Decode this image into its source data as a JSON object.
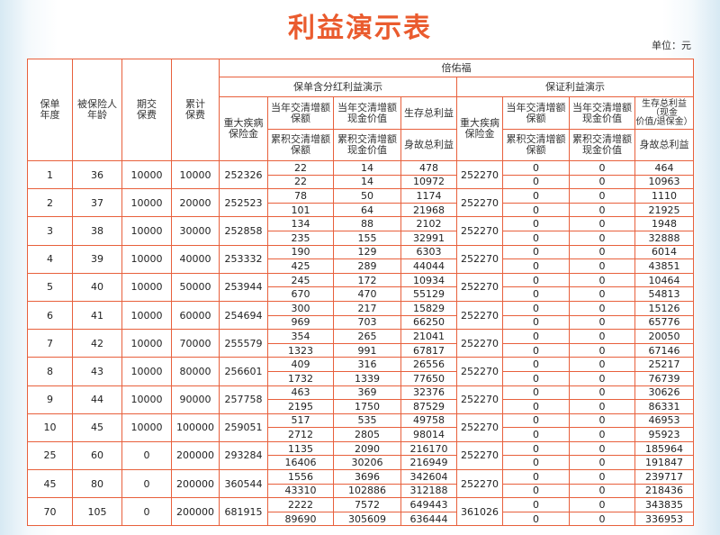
{
  "title": "利益演示表",
  "unit": "单位：元",
  "header": {
    "policy_year": "保单\n年度",
    "age": "被保险人\n年龄",
    "premium": "期交\n保费",
    "total_premium": "累计\n保费",
    "product": "倍佑福",
    "dividend": {
      "section": "保单含分红利益演示",
      "ci": "重大疾病\n保险金",
      "top": [
        "当年交清增额\n保额",
        "当年交清增额\n现金价值",
        "生存总利益"
      ],
      "bottom": [
        "累积交清增额\n保额",
        "累积交清增额\n现金价值",
        "身故总利益"
      ]
    },
    "guaranteed": {
      "section": "保证利益演示",
      "ci": "重大疾病\n保险金",
      "top": [
        "当年交清增额\n保额",
        "当年交清增额\n现金价值",
        "生存总利益\n（现金\n价值/退保金）"
      ],
      "bottom": [
        "累积交清增额\n保额",
        "累积交清增额\n现金价值",
        "身故总利益"
      ]
    }
  },
  "rows": [
    {
      "year": 1,
      "age": 36,
      "premium": 10000,
      "total_premium": 10000,
      "ci": 252326,
      "top": [
        22,
        14,
        478
      ],
      "bottom": [
        22,
        14,
        10972
      ],
      "g_ci": 252270,
      "g_top": [
        0,
        0,
        464
      ],
      "g_bottom": [
        0,
        0,
        10963
      ]
    },
    {
      "year": 2,
      "age": 37,
      "premium": 10000,
      "total_premium": 20000,
      "ci": 252523,
      "top": [
        78,
        50,
        1174
      ],
      "bottom": [
        101,
        64,
        21968
      ],
      "g_ci": 252270,
      "g_top": [
        0,
        0,
        1110
      ],
      "g_bottom": [
        0,
        0,
        21925
      ]
    },
    {
      "year": 3,
      "age": 38,
      "premium": 10000,
      "total_premium": 30000,
      "ci": 252858,
      "top": [
        134,
        88,
        2102
      ],
      "bottom": [
        235,
        155,
        32991
      ],
      "g_ci": 252270,
      "g_top": [
        0,
        0,
        1948
      ],
      "g_bottom": [
        0,
        0,
        32888
      ]
    },
    {
      "year": 4,
      "age": 39,
      "premium": 10000,
      "total_premium": 40000,
      "ci": 253332,
      "top": [
        190,
        129,
        6303
      ],
      "bottom": [
        425,
        289,
        44044
      ],
      "g_ci": 252270,
      "g_top": [
        0,
        0,
        6014
      ],
      "g_bottom": [
        0,
        0,
        43851
      ]
    },
    {
      "year": 5,
      "age": 40,
      "premium": 10000,
      "total_premium": 50000,
      "ci": 253944,
      "top": [
        245,
        172,
        10934
      ],
      "bottom": [
        670,
        470,
        55129
      ],
      "g_ci": 252270,
      "g_top": [
        0,
        0,
        10464
      ],
      "g_bottom": [
        0,
        0,
        54813
      ]
    },
    {
      "year": 6,
      "age": 41,
      "premium": 10000,
      "total_premium": 60000,
      "ci": 254694,
      "top": [
        300,
        217,
        15829
      ],
      "bottom": [
        969,
        703,
        66250
      ],
      "g_ci": 252270,
      "g_top": [
        0,
        0,
        15126
      ],
      "g_bottom": [
        0,
        0,
        65776
      ]
    },
    {
      "year": 7,
      "age": 42,
      "premium": 10000,
      "total_premium": 70000,
      "ci": 255579,
      "top": [
        354,
        265,
        21041
      ],
      "bottom": [
        1323,
        991,
        67817
      ],
      "g_ci": 252270,
      "g_top": [
        0,
        0,
        20050
      ],
      "g_bottom": [
        0,
        0,
        67146
      ]
    },
    {
      "year": 8,
      "age": 43,
      "premium": 10000,
      "total_premium": 80000,
      "ci": 256601,
      "top": [
        409,
        316,
        26556
      ],
      "bottom": [
        1732,
        1339,
        77650
      ],
      "g_ci": 252270,
      "g_top": [
        0,
        0,
        25217
      ],
      "g_bottom": [
        0,
        0,
        76739
      ]
    },
    {
      "year": 9,
      "age": 44,
      "premium": 10000,
      "total_premium": 90000,
      "ci": 257758,
      "top": [
        463,
        369,
        32376
      ],
      "bottom": [
        2195,
        1750,
        87529
      ],
      "g_ci": 252270,
      "g_top": [
        0,
        0,
        30626
      ],
      "g_bottom": [
        0,
        0,
        86331
      ]
    },
    {
      "year": 10,
      "age": 45,
      "premium": 10000,
      "total_premium": 100000,
      "ci": 259051,
      "top": [
        517,
        535,
        49758
      ],
      "bottom": [
        2712,
        2805,
        98014
      ],
      "g_ci": 252270,
      "g_top": [
        0,
        0,
        46953
      ],
      "g_bottom": [
        0,
        0,
        95923
      ]
    },
    {
      "year": 25,
      "age": 60,
      "premium": 0,
      "total_premium": 200000,
      "ci": 293284,
      "top": [
        1135,
        2090,
        216170
      ],
      "bottom": [
        16406,
        30206,
        216949
      ],
      "g_ci": 252270,
      "g_top": [
        0,
        0,
        185964
      ],
      "g_bottom": [
        0,
        0,
        191847
      ]
    },
    {
      "year": 45,
      "age": 80,
      "premium": 0,
      "total_premium": 200000,
      "ci": 360544,
      "top": [
        1556,
        3696,
        342604
      ],
      "bottom": [
        43310,
        102886,
        312188
      ],
      "g_ci": 252270,
      "g_top": [
        0,
        0,
        239717
      ],
      "g_bottom": [
        0,
        0,
        218436
      ]
    },
    {
      "year": 70,
      "age": 105,
      "premium": 0,
      "total_premium": 200000,
      "ci": 681915,
      "top": [
        2222,
        7572,
        649443
      ],
      "bottom": [
        89690,
        305609,
        636444
      ],
      "g_ci": 361026,
      "g_top": [
        0,
        0,
        343835
      ],
      "g_bottom": [
        0,
        0,
        336953
      ]
    }
  ]
}
